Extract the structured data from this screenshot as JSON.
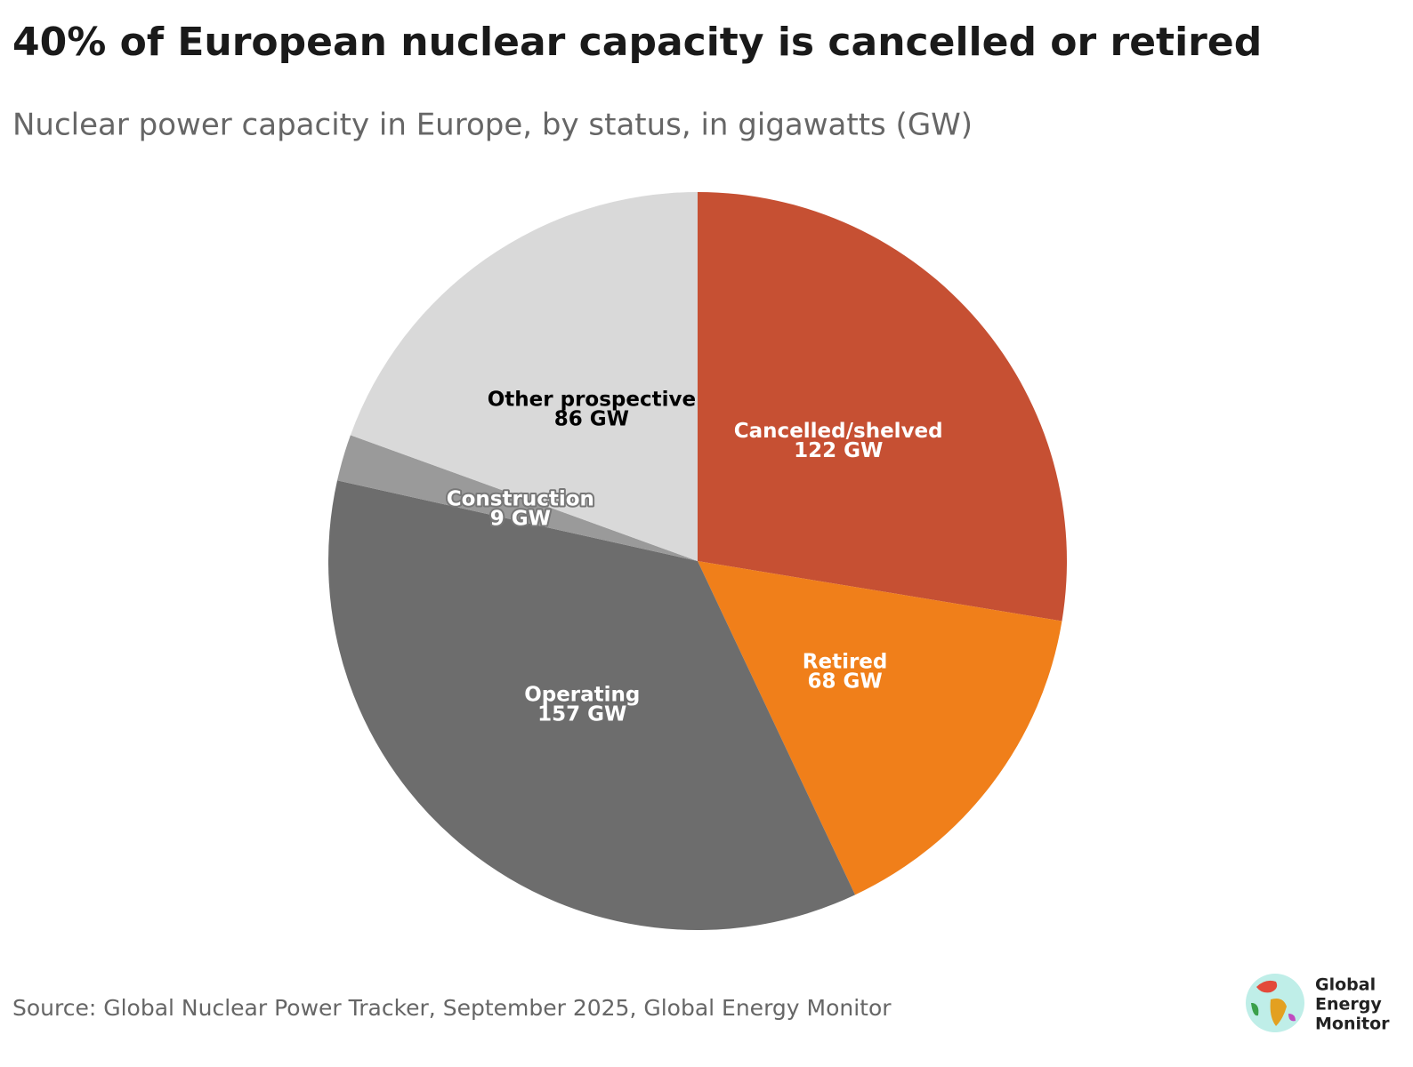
{
  "chart_data": {
    "type": "pie",
    "title": "40% of European nuclear capacity is cancelled or retired",
    "subtitle": "Nuclear power capacity in Europe, by status, in gigawatts (GW)",
    "categories": [
      "Cancelled/shelved",
      "Retired",
      "Operating",
      "Construction",
      "Other prospective"
    ],
    "values": [
      122,
      68,
      157,
      9,
      86
    ],
    "value_labels": [
      "122 GW",
      "68 GW",
      "157 GW",
      "9 GW",
      "86 GW"
    ],
    "colors": [
      "#c65033",
      "#f07f1a",
      "#6d6d6d",
      "#9a9a9a",
      "#d9d9d9"
    ],
    "source": "Source: Global Nuclear Power Tracker, September 2025, Global Energy Monitor"
  },
  "logo": {
    "lines": [
      "Global",
      "Energy",
      "Monitor"
    ]
  }
}
